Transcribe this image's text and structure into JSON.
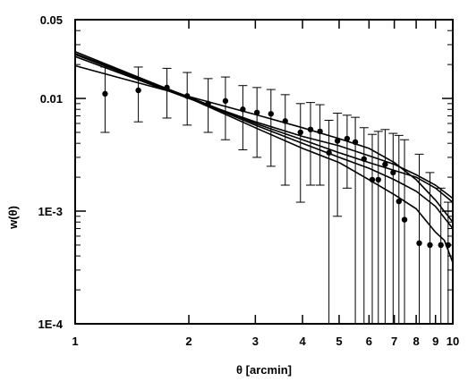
{
  "chart_data": {
    "type": "scatter",
    "title": "",
    "xlabel": "θ [arcmin]",
    "ylabel": "w(θ)",
    "x_scale": "log",
    "y_scale": "log",
    "xlim": [
      1,
      10
    ],
    "ylim": [
      0.0001,
      0.05
    ],
    "grid": false,
    "legend": "none",
    "x_ticks": [
      {
        "value": 1,
        "label": "1"
      },
      {
        "value": 2,
        "label": "2"
      },
      {
        "value": 3,
        "label": "3"
      },
      {
        "value": 4,
        "label": "4"
      },
      {
        "value": 5,
        "label": "5"
      },
      {
        "value": 6,
        "label": "6"
      },
      {
        "value": 7,
        "label": "7"
      },
      {
        "value": 8,
        "label": "8"
      },
      {
        "value": 9,
        "label": "9"
      },
      {
        "value": 10,
        "label": "10"
      }
    ],
    "y_ticks": [
      {
        "value": 0.0001,
        "label": "1E-4"
      },
      {
        "value": 0.001,
        "label": "1E-3"
      },
      {
        "value": 0.01,
        "label": "0.01"
      },
      {
        "value": 0.05,
        "label": "0.05"
      }
    ],
    "points": [
      {
        "x": 1.2,
        "y": 0.011,
        "ylo": 0.005,
        "yhi": 0.019
      },
      {
        "x": 1.47,
        "y": 0.0118,
        "ylo": 0.0062,
        "yhi": 0.019
      },
      {
        "x": 1.75,
        "y": 0.0125,
        "ylo": 0.0067,
        "yhi": 0.0185
      },
      {
        "x": 1.98,
        "y": 0.0105,
        "ylo": 0.0058,
        "yhi": 0.017
      },
      {
        "x": 2.25,
        "y": 0.009,
        "ylo": 0.005,
        "yhi": 0.015
      },
      {
        "x": 2.5,
        "y": 0.0095,
        "ylo": 0.0043,
        "yhi": 0.0155
      },
      {
        "x": 2.78,
        "y": 0.008,
        "ylo": 0.0035,
        "yhi": 0.013
      },
      {
        "x": 3.03,
        "y": 0.0075,
        "ylo": 0.003,
        "yhi": 0.0125
      },
      {
        "x": 3.3,
        "y": 0.0073,
        "ylo": 0.0025,
        "yhi": 0.012
      },
      {
        "x": 3.6,
        "y": 0.0063,
        "ylo": 0.0017,
        "yhi": 0.0108
      },
      {
        "x": 3.95,
        "y": 0.005,
        "ylo": 0.0012,
        "yhi": 0.009
      },
      {
        "x": 4.2,
        "y": 0.0053,
        "ylo": 0.0017,
        "yhi": 0.0092
      },
      {
        "x": 4.45,
        "y": 0.0051,
        "ylo": 0.0017,
        "yhi": 0.0088
      },
      {
        "x": 4.7,
        "y": 0.0033,
        "ylo": 0.0001,
        "yhi": 0.0064
      },
      {
        "x": 4.95,
        "y": 0.0042,
        "ylo": 0.0009,
        "yhi": 0.0074
      },
      {
        "x": 5.25,
        "y": 0.0044,
        "ylo": 0.0016,
        "yhi": 0.0071
      },
      {
        "x": 5.52,
        "y": 0.0041,
        "ylo": 0.0001,
        "yhi": 0.0068
      },
      {
        "x": 5.82,
        "y": 0.0029,
        "ylo": 0.0001,
        "yhi": 0.0055
      },
      {
        "x": 6.12,
        "y": 0.0019,
        "ylo": 0.0001,
        "yhi": 0.0048
      },
      {
        "x": 6.35,
        "y": 0.0019,
        "ylo": 0.0001,
        "yhi": 0.0051
      },
      {
        "x": 6.62,
        "y": 0.0026,
        "ylo": 0.0001,
        "yhi": 0.0053
      },
      {
        "x": 6.95,
        "y": 0.0022,
        "ylo": 0.0001,
        "yhi": 0.0049
      },
      {
        "x": 7.2,
        "y": 0.00122,
        "ylo": 0.0001,
        "yhi": 0.0047
      },
      {
        "x": 7.45,
        "y": 0.00084,
        "ylo": 0.0001,
        "yhi": 0.0043
      },
      {
        "x": 8.15,
        "y": 0.00052,
        "ylo": 0.0001,
        "yhi": 0.0032
      },
      {
        "x": 8.7,
        "y": 0.0005,
        "ylo": 0.0001,
        "yhi": 0.0022
      },
      {
        "x": 9.3,
        "y": 0.0005,
        "ylo": 0.0001,
        "yhi": 0.0016
      },
      {
        "x": 9.72,
        "y": 0.0005,
        "ylo": 0.0001,
        "yhi": 0.0012
      }
    ],
    "series": [
      {
        "x": [
          1,
          2,
          3,
          4,
          5,
          6,
          7,
          8,
          9,
          10
        ],
        "y": [
          0.0235,
          0.01,
          0.0062,
          0.0046,
          0.0038,
          0.0031,
          0.0026,
          0.0021,
          0.0017,
          0.0013
        ]
      },
      {
        "x": [
          1,
          2,
          3,
          4,
          5,
          6,
          7,
          8,
          9,
          10
        ],
        "y": [
          0.025,
          0.0103,
          0.006,
          0.0043,
          0.0033,
          0.0027,
          0.0023,
          0.002,
          0.0016,
          0.0012
        ]
      },
      {
        "x": [
          1,
          2,
          3,
          4,
          5,
          6,
          7,
          8,
          9,
          10
        ],
        "y": [
          0.0195,
          0.0104,
          0.0072,
          0.0055,
          0.0044,
          0.0036,
          0.0027,
          0.0019,
          0.00125,
          0.0008
        ]
      },
      {
        "x": [
          1,
          2,
          3,
          4,
          5,
          6,
          7,
          8,
          9,
          10
        ],
        "y": [
          0.026,
          0.0102,
          0.0058,
          0.004,
          0.003,
          0.0024,
          0.0019,
          0.0015,
          0.0011,
          0.0007
        ]
      },
      {
        "x": [
          1,
          2,
          3,
          4,
          5,
          6,
          7,
          8,
          9,
          9.5,
          10
        ],
        "y": [
          0.0245,
          0.0101,
          0.0055,
          0.0036,
          0.0027,
          0.0019,
          0.0014,
          0.00105,
          0.00065,
          0.00055,
          0.00035
        ]
      }
    ]
  }
}
